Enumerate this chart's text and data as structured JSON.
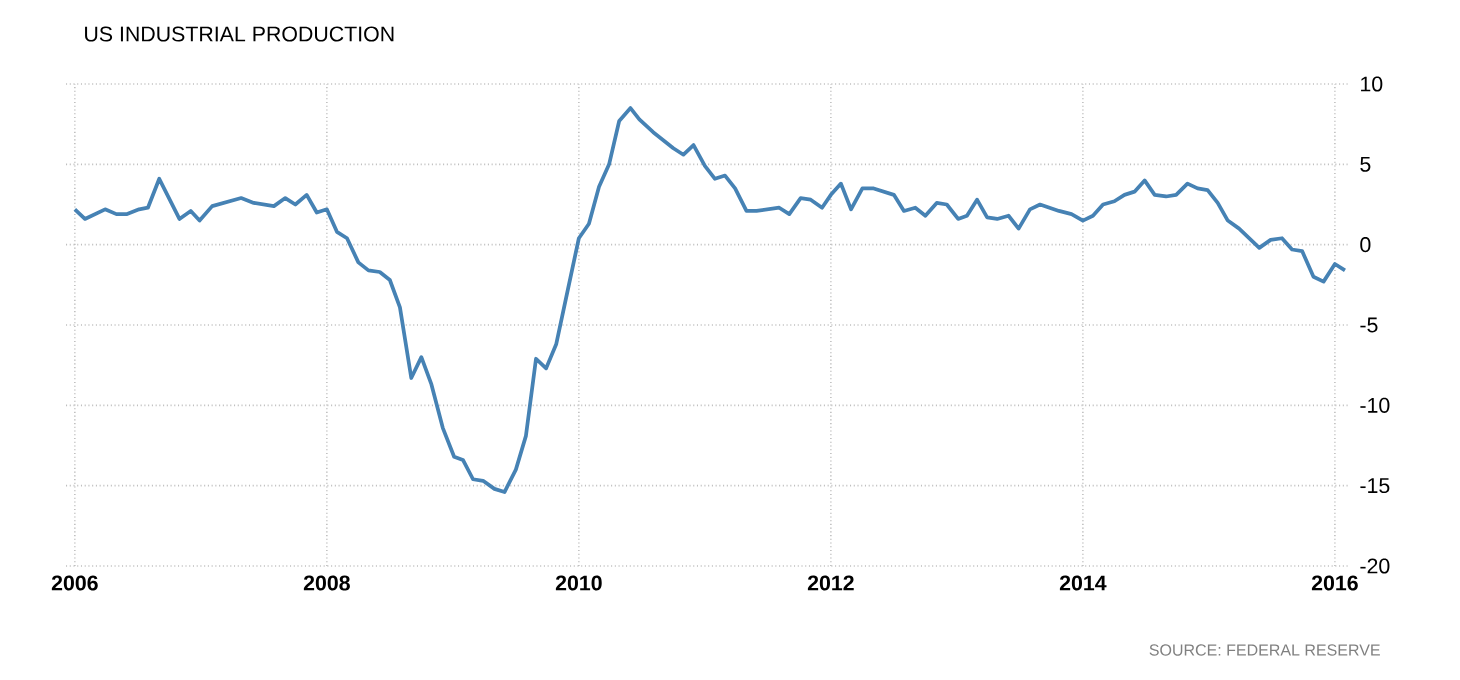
{
  "chart_data": {
    "type": "line",
    "title": "US INDUSTRIAL PRODUCTION",
    "annotations": [
      "SOURCE: FEDERAL RESERVE"
    ],
    "x": [
      2006.0,
      2006.08,
      2006.24,
      2006.33,
      2006.41,
      2006.51,
      2006.58,
      2006.67,
      2006.83,
      2006.92,
      2006.99,
      2007.09,
      2007.32,
      2007.42,
      2007.58,
      2007.67,
      2007.75,
      2007.84,
      2007.92,
      2008.0,
      2008.08,
      2008.16,
      2008.25,
      2008.33,
      2008.42,
      2008.5,
      2008.58,
      2008.67,
      2008.75,
      2008.83,
      2008.92,
      2009.01,
      2009.08,
      2009.16,
      2009.24,
      2009.33,
      2009.41,
      2009.5,
      2009.58,
      2009.66,
      2009.74,
      2009.82,
      2009.91,
      2010.0,
      2010.08,
      2010.16,
      2010.24,
      2010.32,
      2010.41,
      2010.48,
      2010.59,
      2010.75,
      2010.83,
      2010.91,
      2011.0,
      2011.08,
      2011.16,
      2011.24,
      2011.33,
      2011.41,
      2011.59,
      2011.67,
      2011.76,
      2011.84,
      2011.93,
      2012.0,
      2012.08,
      2012.16,
      2012.25,
      2012.34,
      2012.5,
      2012.58,
      2012.67,
      2012.75,
      2012.84,
      2012.92,
      2013.01,
      2013.08,
      2013.16,
      2013.24,
      2013.32,
      2013.41,
      2013.49,
      2013.58,
      2013.66,
      2013.81,
      2013.91,
      2014.0,
      2014.08,
      2014.16,
      2014.25,
      2014.33,
      2014.41,
      2014.49,
      2014.57,
      2014.66,
      2014.74,
      2014.83,
      2014.91,
      2014.99,
      2015.07,
      2015.15,
      2015.24,
      2015.4,
      2015.49,
      2015.58,
      2015.66,
      2015.74,
      2015.83,
      2015.91,
      2016.0,
      2016.08
    ],
    "values": [
      2.2,
      1.6,
      2.2,
      1.9,
      1.9,
      2.2,
      2.3,
      4.1,
      1.6,
      2.1,
      1.5,
      2.4,
      2.9,
      2.6,
      2.4,
      2.9,
      2.5,
      3.1,
      2.0,
      2.2,
      0.8,
      0.4,
      -1.1,
      -1.6,
      -1.7,
      -2.2,
      -3.9,
      -8.3,
      -7.0,
      -8.7,
      -11.4,
      -13.2,
      -13.4,
      -14.6,
      -14.7,
      -15.2,
      -15.4,
      -14.0,
      -11.9,
      -7.1,
      -7.7,
      -6.2,
      -2.9,
      0.4,
      1.3,
      3.6,
      5.0,
      7.7,
      8.5,
      7.8,
      7.0,
      6.0,
      5.6,
      6.2,
      4.9,
      4.1,
      4.3,
      3.5,
      2.1,
      2.1,
      2.3,
      1.9,
      2.9,
      2.8,
      2.3,
      3.1,
      3.8,
      2.2,
      3.5,
      3.5,
      3.1,
      2.1,
      2.3,
      1.8,
      2.6,
      2.5,
      1.6,
      1.8,
      2.8,
      1.7,
      1.6,
      1.8,
      1.0,
      2.2,
      2.5,
      2.1,
      1.9,
      1.5,
      1.8,
      2.5,
      2.7,
      3.1,
      3.3,
      4.0,
      3.1,
      3.0,
      3.1,
      3.8,
      3.5,
      3.4,
      2.6,
      1.5,
      1.0,
      -0.2,
      0.3,
      0.4,
      -0.3,
      -0.4,
      -2.0,
      -2.3,
      -1.2,
      -1.6
    ],
    "color": "#4682b4",
    "xlim": [
      2005.93,
      2016.12
    ],
    "ylim": [
      -20,
      10
    ],
    "xticks": [
      2006,
      2008,
      2010,
      2012,
      2014,
      2016
    ],
    "yticks": [
      -20,
      -15,
      -10,
      -5,
      0,
      5,
      10
    ],
    "grid": true,
    "line_style": "solid"
  }
}
